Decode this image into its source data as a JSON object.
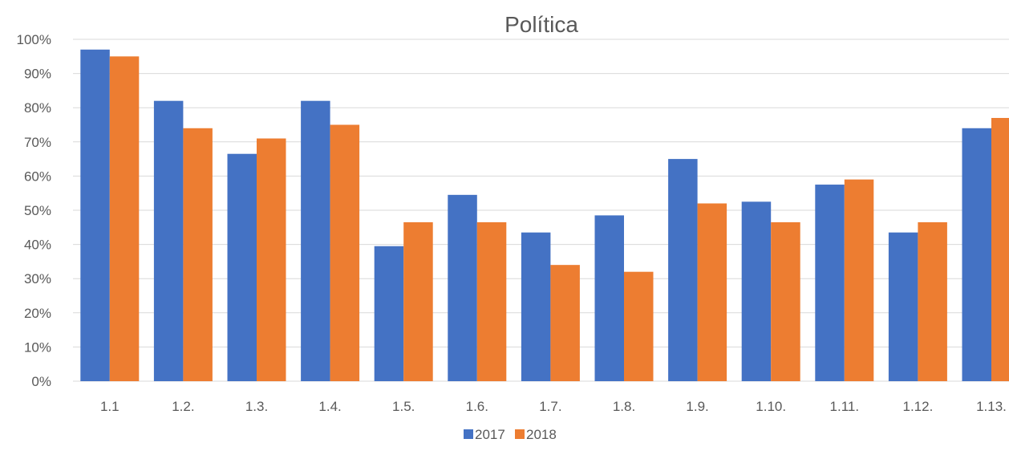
{
  "chart_data": {
    "type": "bar",
    "title": "Política",
    "xlabel": "",
    "ylabel": "",
    "ylim": [
      0,
      100
    ],
    "y_ticks": [
      "0%",
      "10%",
      "20%",
      "30%",
      "40%",
      "50%",
      "60%",
      "70%",
      "80%",
      "90%",
      "100%"
    ],
    "y_tick_values": [
      0,
      10,
      20,
      30,
      40,
      50,
      60,
      70,
      80,
      90,
      100
    ],
    "categories": [
      "1.1",
      "1.2.",
      "1.3.",
      "1.4.",
      "1.5.",
      "1.6.",
      "1.7.",
      "1.8.",
      "1.9.",
      "1.10.",
      "1.11.",
      "1.12.",
      "1.13."
    ],
    "series": [
      {
        "name": "2017",
        "color": "#4472C4",
        "values": [
          97,
          82,
          66.5,
          82,
          39.5,
          54.5,
          43.5,
          48.5,
          65,
          52.5,
          57.5,
          43.5,
          74
        ]
      },
      {
        "name": "2018",
        "color": "#ED7D31",
        "values": [
          95,
          74,
          71,
          75,
          46.5,
          46.5,
          34,
          32,
          52,
          46.5,
          59,
          46.5,
          77
        ]
      }
    ],
    "grid": true,
    "legend_position": "bottom"
  }
}
